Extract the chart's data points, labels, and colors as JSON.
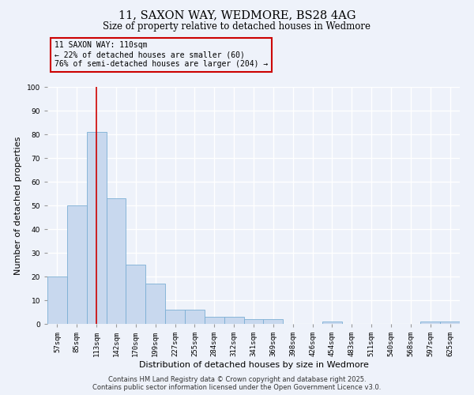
{
  "title": "11, SAXON WAY, WEDMORE, BS28 4AG",
  "subtitle": "Size of property relative to detached houses in Wedmore",
  "xlabel": "Distribution of detached houses by size in Wedmore",
  "ylabel": "Number of detached properties",
  "categories": [
    "57sqm",
    "85sqm",
    "113sqm",
    "142sqm",
    "170sqm",
    "199sqm",
    "227sqm",
    "255sqm",
    "284sqm",
    "312sqm",
    "341sqm",
    "369sqm",
    "398sqm",
    "426sqm",
    "454sqm",
    "483sqm",
    "511sqm",
    "540sqm",
    "568sqm",
    "597sqm",
    "625sqm"
  ],
  "values": [
    20,
    50,
    81,
    53,
    25,
    17,
    6,
    6,
    3,
    3,
    2,
    2,
    0,
    0,
    1,
    0,
    0,
    0,
    0,
    1,
    1
  ],
  "bar_color": "#c8d8ee",
  "bar_edge_color": "#7bafd4",
  "background_color": "#eef2fa",
  "grid_color": "#ffffff",
  "vline_x": 2,
  "vline_color": "#cc0000",
  "annotation_text": "11 SAXON WAY: 110sqm\n← 22% of detached houses are smaller (60)\n76% of semi-detached houses are larger (204) →",
  "annotation_box_color": "#cc0000",
  "footer1": "Contains HM Land Registry data © Crown copyright and database right 2025.",
  "footer2": "Contains public sector information licensed under the Open Government Licence v3.0.",
  "ylim": [
    0,
    100
  ],
  "title_fontsize": 10.5,
  "subtitle_fontsize": 8.5,
  "tick_fontsize": 6.5,
  "axis_label_fontsize": 8,
  "footer_fontsize": 6
}
